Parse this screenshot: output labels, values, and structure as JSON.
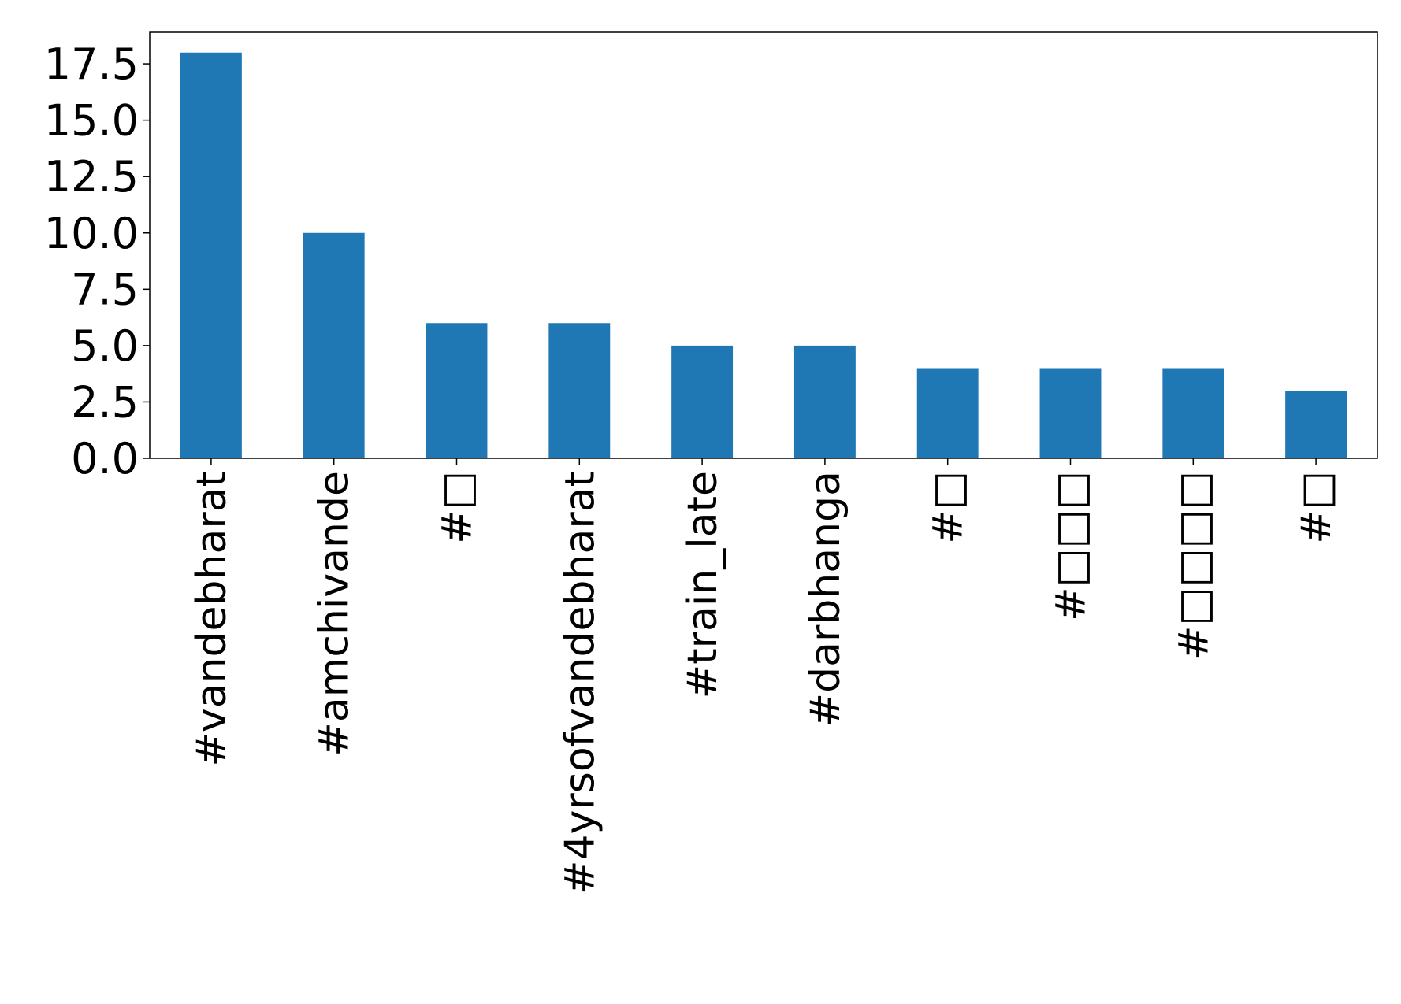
{
  "chart_data": {
    "type": "bar",
    "categories": [
      "#vandebharat",
      "#amchivande",
      "#□",
      "#4yrsofvandebharat",
      "#train_late",
      "#darbhanga",
      "#□",
      "#□□□",
      "#□□□□",
      "#□"
    ],
    "values": [
      18,
      10,
      6,
      6,
      5,
      5,
      4,
      4,
      4,
      3
    ],
    "yticks": [
      "0.0",
      "2.5",
      "5.0",
      "7.5",
      "10.0",
      "12.5",
      "15.0",
      "17.5"
    ],
    "ylim": [
      0,
      18.9
    ],
    "bar_color": "#1f77b4",
    "grid": false,
    "title": "",
    "xlabel": "",
    "ylabel": ""
  }
}
